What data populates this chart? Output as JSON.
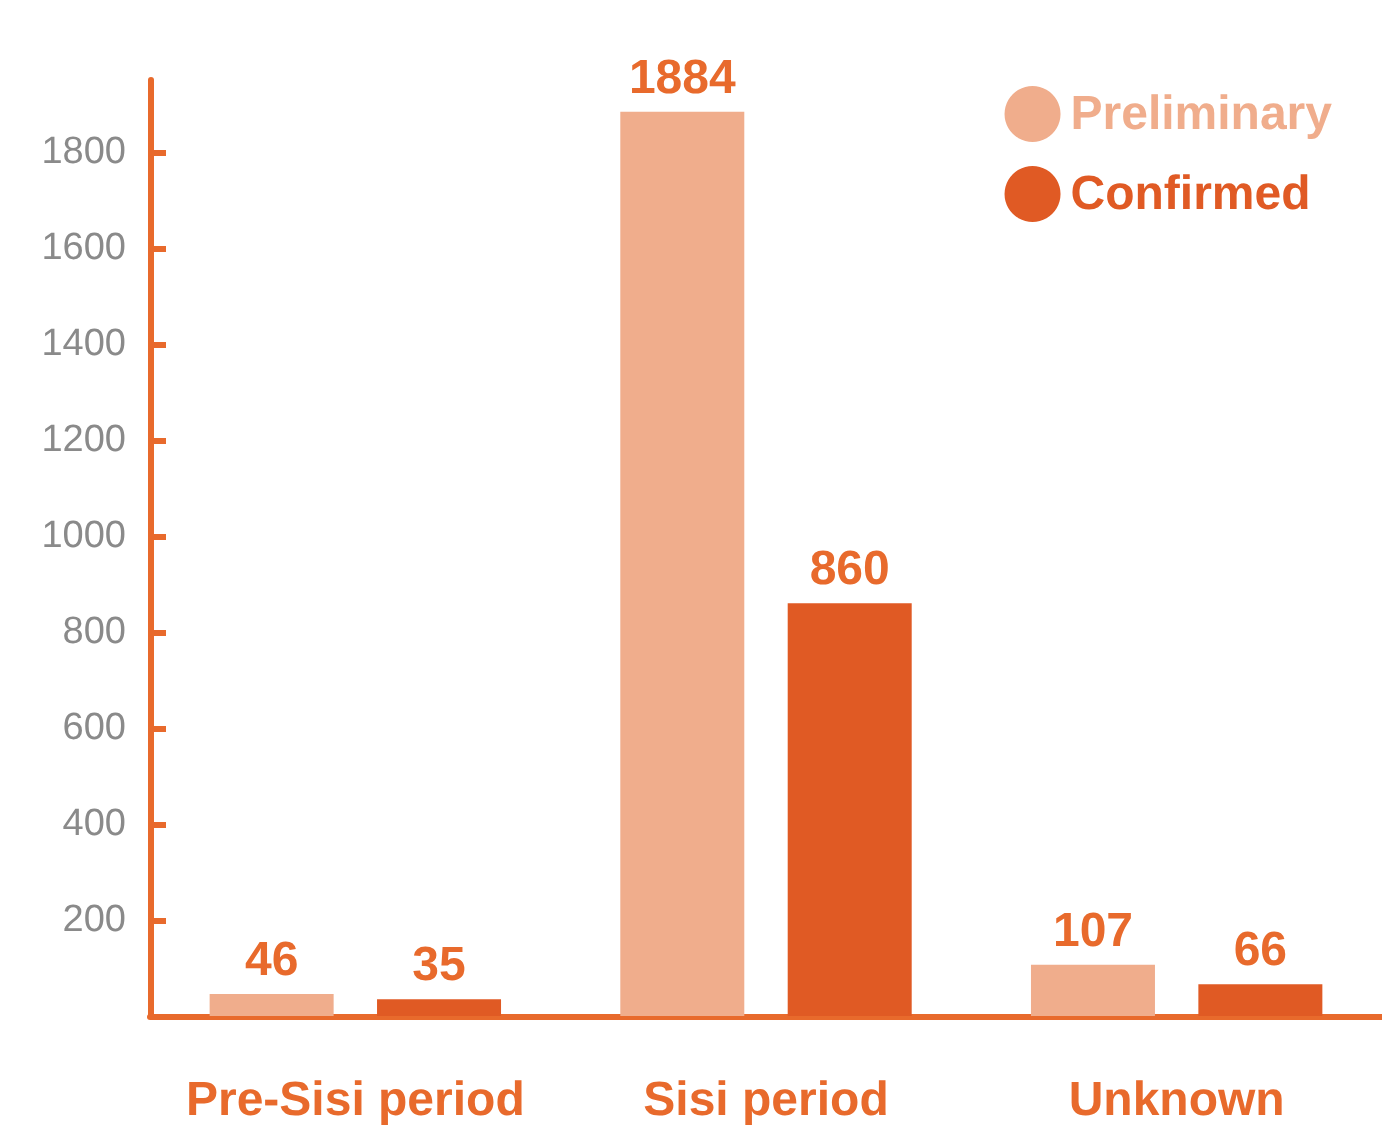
{
  "chart_data": {
    "type": "bar",
    "categories": [
      "Pre-Sisi period",
      "Sisi period",
      "Unknown"
    ],
    "series": [
      {
        "name": "Preliminary",
        "color": "#f0ad8c",
        "values": [
          46,
          1884,
          107
        ]
      },
      {
        "name": "Confirmed",
        "color": "#e05a24",
        "values": [
          35,
          860,
          66
        ]
      }
    ],
    "ylim": [
      0,
      1950
    ],
    "yticks": [
      200,
      400,
      600,
      800,
      1000,
      1200,
      1400,
      1600,
      1800
    ],
    "data_labels": true,
    "grid": false,
    "legend": "top right"
  }
}
